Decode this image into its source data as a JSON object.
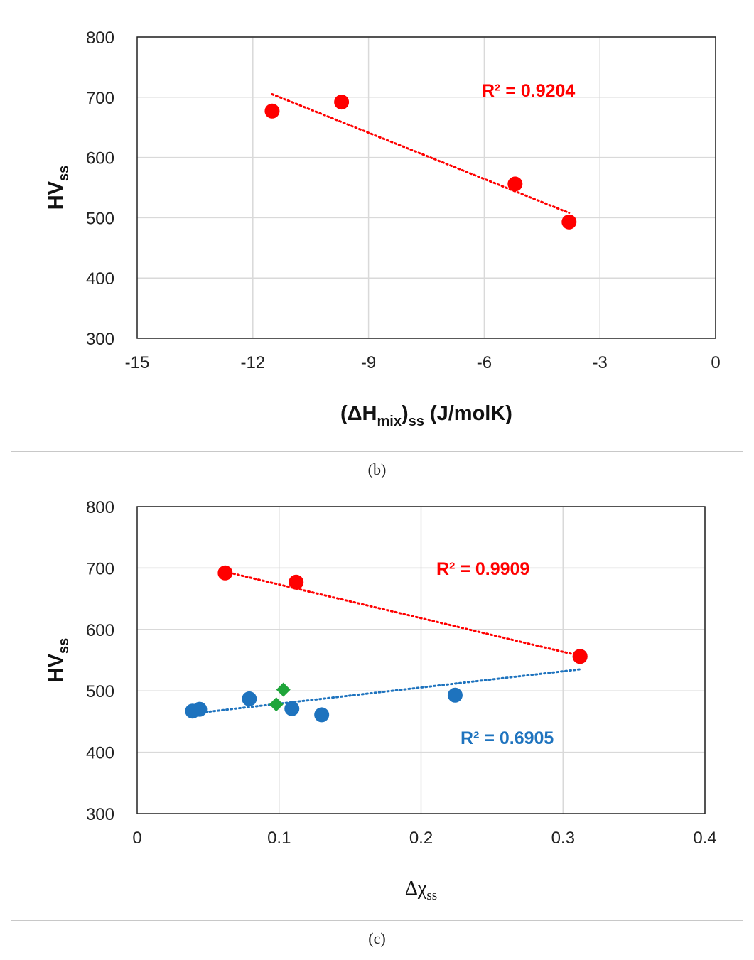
{
  "captions": {
    "b": "(b)",
    "c": "(c)"
  },
  "chart_data": [
    {
      "type": "scatter",
      "panel": "b",
      "xlabel": {
        "prefix": "(ΔH",
        "sub1": "mix",
        "mid": ")",
        "sub2": "ss",
        "suffix": " (J/molK)"
      },
      "ylabel": {
        "main": "HV",
        "sub": "ss"
      },
      "xlim": [
        -15,
        0
      ],
      "ylim": [
        300,
        800
      ],
      "xticks": [
        -15,
        -12,
        -9,
        -6,
        -3,
        0
      ],
      "yticks": [
        300,
        400,
        500,
        600,
        700,
        800
      ],
      "grid": true,
      "series": [
        {
          "name": "red",
          "color": "#ff0000",
          "marker": "circle",
          "points": [
            [
              -11.5,
              677
            ],
            [
              -9.7,
              692
            ],
            [
              -5.2,
              556
            ],
            [
              -3.8,
              493
            ]
          ],
          "trendline": {
            "x": [
              -11.5,
              -3.8
            ],
            "y": [
              705,
              508
            ]
          },
          "r2_label": "R² = 0.9204"
        }
      ]
    },
    {
      "type": "scatter",
      "panel": "c",
      "xlabel": {
        "main": "Δχ",
        "sub": "ss"
      },
      "ylabel": {
        "main": "HV",
        "sub": "ss"
      },
      "xlim": [
        0,
        0.4
      ],
      "ylim": [
        300,
        800
      ],
      "xticks": [
        0,
        0.1,
        0.2,
        0.3,
        0.4
      ],
      "yticks": [
        300,
        400,
        500,
        600,
        700,
        800
      ],
      "grid": true,
      "series": [
        {
          "name": "red",
          "color": "#ff0000",
          "marker": "circle",
          "points": [
            [
              0.062,
              692
            ],
            [
              0.112,
              677
            ],
            [
              0.312,
              556
            ]
          ],
          "trendline": {
            "x": [
              0.062,
              0.312
            ],
            "y": [
              694,
              557
            ]
          },
          "r2_label": "R² = 0.9909"
        },
        {
          "name": "blue",
          "color": "#1e73be",
          "marker": "circle",
          "points": [
            [
              0.039,
              467
            ],
            [
              0.044,
              470
            ],
            [
              0.079,
              487
            ],
            [
              0.109,
              471
            ],
            [
              0.13,
              461
            ],
            [
              0.224,
              493
            ],
            [
              0.312,
              556
            ]
          ],
          "trendline": {
            "x": [
              0.039,
              0.312
            ],
            "y": [
              463,
              535
            ]
          },
          "r2_label": "R² = 0.6905"
        },
        {
          "name": "green",
          "color": "#1fa53a",
          "marker": "diamond",
          "points": [
            [
              0.098,
              478
            ],
            [
              0.103,
              502
            ]
          ]
        }
      ]
    }
  ]
}
